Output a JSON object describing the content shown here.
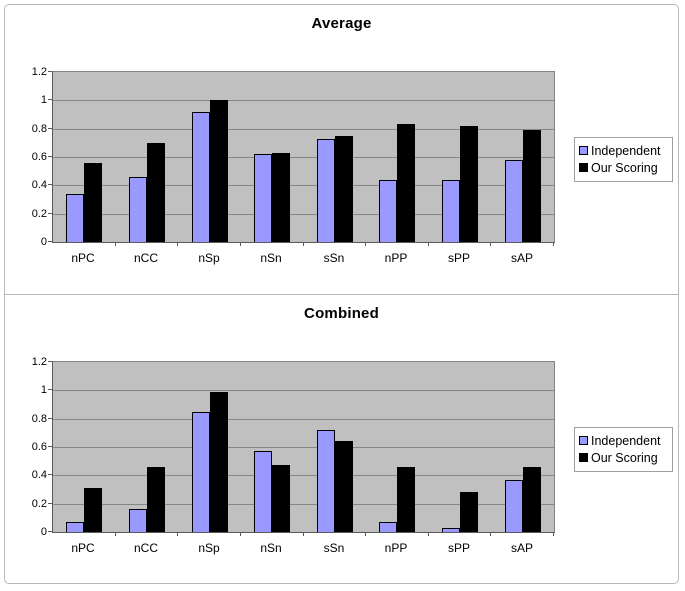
{
  "colors": {
    "plot_background": "#c0c0c0",
    "gridline": "#868686",
    "independent_fill": "#9999ff",
    "independent_border": "#000000",
    "our_scoring_fill": "#000000",
    "frame_border": "#b8b8b8",
    "legend_border": "#9e9e9e"
  },
  "chart_data": [
    {
      "type": "bar",
      "title": "Average",
      "categories": [
        "nPC",
        "nCC",
        "nSp",
        "nSn",
        "sSn",
        "nPP",
        "sPP",
        "sAP"
      ],
      "series": [
        {
          "name": "Independent",
          "values": [
            0.34,
            0.46,
            0.92,
            0.62,
            0.73,
            0.44,
            0.44,
            0.58
          ]
        },
        {
          "name": "Our Scoring",
          "values": [
            0.56,
            0.7,
            1.0,
            0.63,
            0.75,
            0.83,
            0.82,
            0.79
          ]
        }
      ],
      "xlabel": "",
      "ylabel": "",
      "ylim": [
        0,
        1.2
      ],
      "yticks": [
        {
          "value": 0,
          "label": "0"
        },
        {
          "value": 0.2,
          "label": "0.2"
        },
        {
          "value": 0.4,
          "label": "0.4"
        },
        {
          "value": 0.6,
          "label": "0.6"
        },
        {
          "value": 0.8,
          "label": "0.8"
        },
        {
          "value": 1,
          "label": "1"
        },
        {
          "value": 1.2,
          "label": "1.2"
        }
      ],
      "grid": true,
      "legend_position": "right"
    },
    {
      "type": "bar",
      "title": "Combined",
      "categories": [
        "nPC",
        "nCC",
        "nSp",
        "nSn",
        "sSn",
        "nPP",
        "sPP",
        "sAP"
      ],
      "series": [
        {
          "name": "Independent",
          "values": [
            0.07,
            0.16,
            0.85,
            0.57,
            0.72,
            0.07,
            0.03,
            0.37
          ]
        },
        {
          "name": "Our Scoring",
          "values": [
            0.31,
            0.46,
            0.99,
            0.47,
            0.64,
            0.46,
            0.28,
            0.46
          ]
        }
      ],
      "xlabel": "",
      "ylabel": "",
      "ylim": [
        0,
        1.2
      ],
      "yticks": [
        {
          "value": 0,
          "label": "0"
        },
        {
          "value": 0.2,
          "label": "0.2"
        },
        {
          "value": 0.4,
          "label": "0.4"
        },
        {
          "value": 0.6,
          "label": "0.6"
        },
        {
          "value": 0.8,
          "label": "0.8"
        },
        {
          "value": 1,
          "label": "1"
        },
        {
          "value": 1.2,
          "label": "1.2"
        }
      ],
      "grid": true,
      "legend_position": "right"
    }
  ]
}
